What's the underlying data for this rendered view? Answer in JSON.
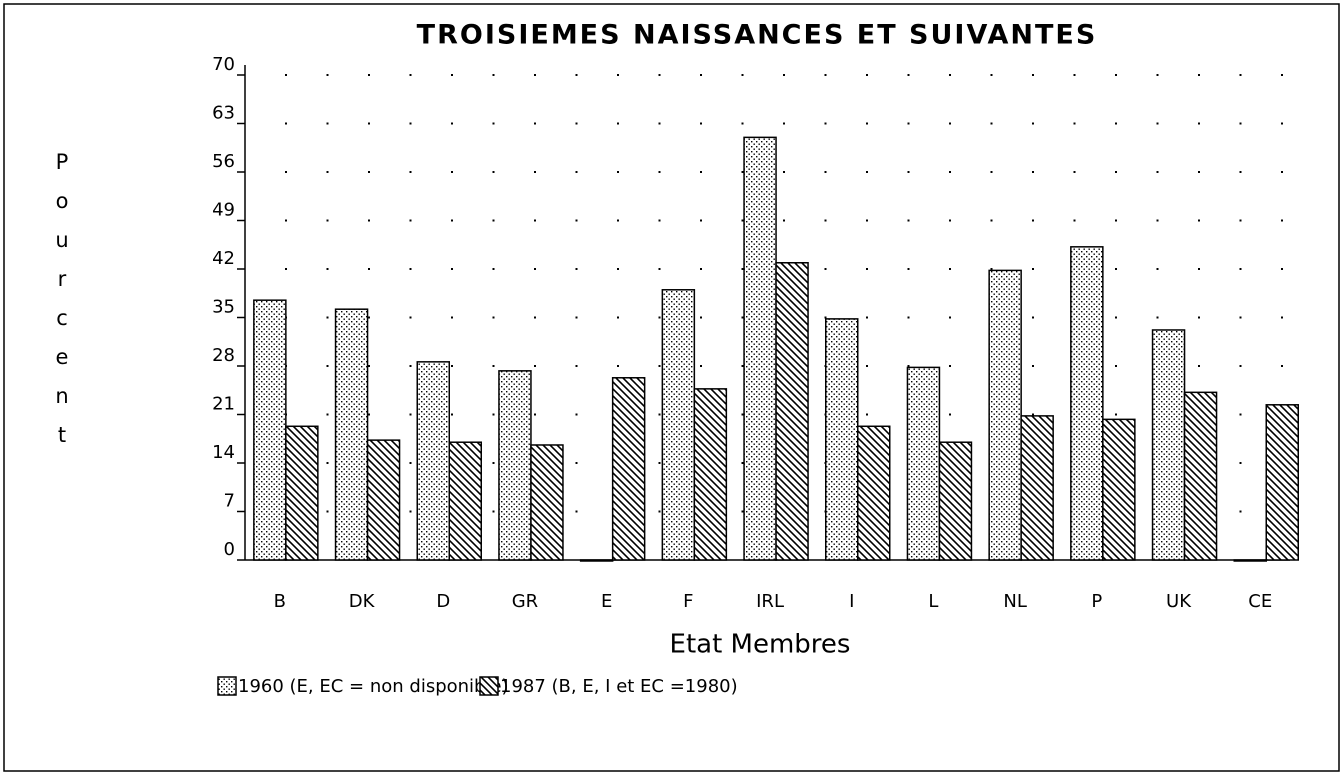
{
  "chart_data": {
    "type": "bar",
    "title": "TROISIEMES NAISSANCES ET SUIVANTES",
    "x_label": "Etat Membres",
    "y_label": "Pourcent",
    "categories": [
      "B",
      "DK",
      "D",
      "GR",
      "E",
      "F",
      "IRL",
      "I",
      "L",
      "NL",
      "P",
      "UK",
      "CE"
    ],
    "series": [
      {
        "name": "1960 (E, EC = non disponible)",
        "color": "#000000",
        "pattern": "dots",
        "values": [
          37.5,
          36.2,
          28.6,
          27.3,
          0,
          39,
          61,
          34.8,
          27.8,
          41.8,
          45.2,
          33.2,
          0
        ]
      },
      {
        "name": "1987 (B, E, I et EC =1980)",
        "color": "#000000",
        "pattern": "hatch",
        "values": [
          19.3,
          17.3,
          17,
          16.6,
          26.3,
          24.7,
          42.9,
          19.3,
          17,
          20.8,
          20.3,
          24.2,
          22.4
        ]
      }
    ],
    "ylim": [
      0,
      70
    ],
    "yticks": [
      0,
      7,
      14,
      21,
      28,
      35,
      42,
      49,
      56,
      63,
      70
    ],
    "grid": true
  }
}
